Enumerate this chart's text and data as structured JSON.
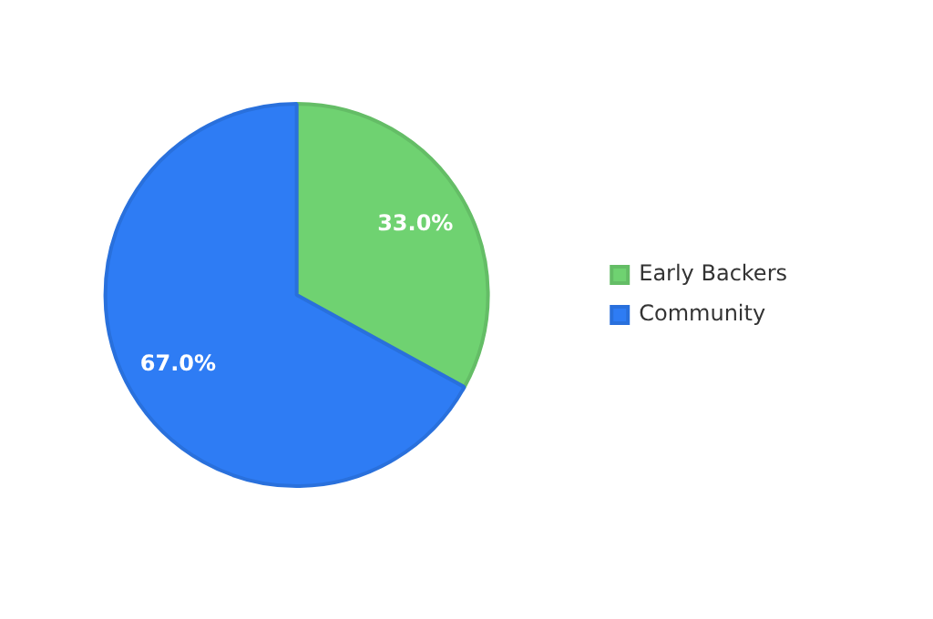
{
  "chart_data": {
    "type": "pie",
    "categories": [
      "Early Backers",
      "Community"
    ],
    "values": [
      33,
      67
    ],
    "colors": [
      "#6fd271",
      "#2e7cf4"
    ],
    "value_labels": [
      "33.0%",
      "67.0%"
    ],
    "legend": "right"
  }
}
